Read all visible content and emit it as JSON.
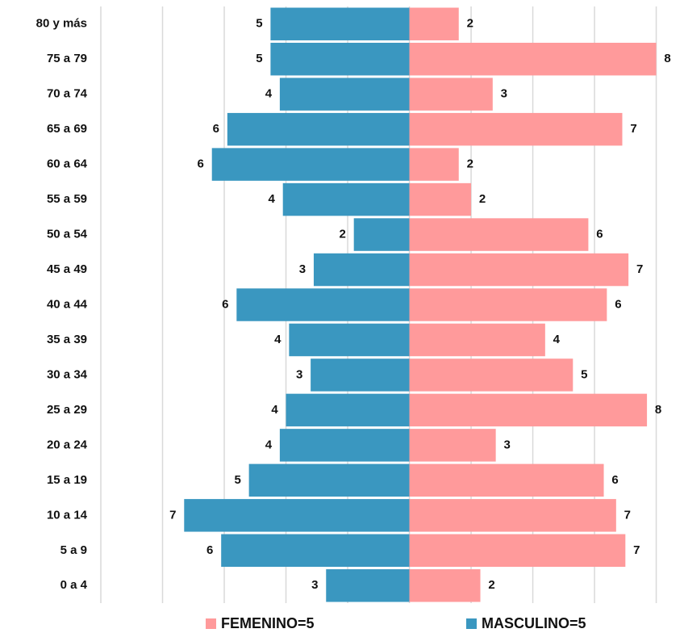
{
  "chart_data": {
    "type": "pyramid",
    "categories": [
      "80 y más",
      "75 a 79",
      "70 a 74",
      "65 a 69",
      "60 a 64",
      "55 a 59",
      "50 a 54",
      "45 a 49",
      "40 a 44",
      "35 a 39",
      "30 a 34",
      "25 a 29",
      "20 a 24",
      "15 a 19",
      "10 a 14",
      "5 a 9",
      "0 a 4"
    ],
    "series": [
      {
        "name": "MASCULINO=5",
        "color": "#3a97c0",
        "side": "left",
        "values": [
          4.5,
          4.5,
          4.2,
          5.9,
          6.4,
          4.1,
          1.8,
          3.1,
          5.6,
          3.9,
          3.2,
          4.0,
          4.2,
          5.2,
          7.3,
          6.1,
          2.7
        ],
        "value_labels": [
          "5",
          "5",
          "4",
          "6",
          "6",
          "4",
          "2",
          "3",
          "6",
          "4",
          "3",
          "4",
          "4",
          "5",
          "7",
          "6",
          "3"
        ]
      },
      {
        "name": "FEMENINO=5",
        "color": "#ff9a9b",
        "side": "right",
        "values": [
          1.6,
          8.0,
          2.7,
          6.9,
          1.6,
          2.0,
          5.8,
          7.1,
          6.4,
          4.4,
          5.3,
          7.7,
          2.8,
          6.3,
          6.7,
          7.0,
          2.3
        ],
        "value_labels": [
          "2",
          "8",
          "3",
          "7",
          "2",
          "2",
          "6",
          "7",
          "6",
          "4",
          "5",
          "8",
          "3",
          "6",
          "7",
          "7",
          "2"
        ]
      }
    ],
    "xlim": [
      -10,
      8.9
    ],
    "xticks": [
      -10,
      -8,
      -6,
      -4,
      -2,
      0,
      2,
      4,
      6,
      8
    ],
    "grid": true
  }
}
